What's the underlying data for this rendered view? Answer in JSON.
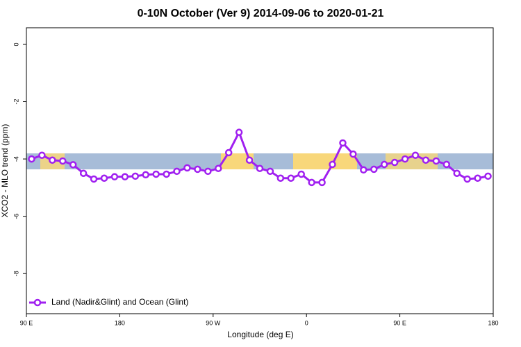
{
  "chart_data": {
    "type": "line",
    "title": "0-10N October (Ver 9)   2014-09-06 to 2020-01-21",
    "x_label": "Longitude (deg E)",
    "y_label": "XCO2 - MLO trend (ppm)",
    "x": [
      95,
      105,
      115,
      125,
      135,
      145,
      155,
      165,
      175,
      185,
      195,
      205,
      215,
      225,
      235,
      245,
      255,
      265,
      275,
      285,
      295,
      305,
      315,
      325,
      335,
      345,
      355,
      365,
      375,
      385,
      395,
      405,
      415,
      425,
      435,
      445,
      455,
      465,
      475,
      485,
      495,
      505,
      515,
      525,
      535
    ],
    "series": [
      {
        "name": "Land (Nadir&Glint) and Ocean (Glint)",
        "color": "#a020f0",
        "values": [
          -4.0,
          -3.87,
          -4.04,
          -4.07,
          -4.2,
          -4.5,
          -4.7,
          -4.67,
          -4.62,
          -4.62,
          -4.6,
          -4.55,
          -4.53,
          -4.53,
          -4.43,
          -4.31,
          -4.36,
          -4.43,
          -4.33,
          -3.78,
          -3.07,
          -4.04,
          -4.33,
          -4.43,
          -4.67,
          -4.67,
          -4.53,
          -4.82,
          -4.82,
          -4.19,
          -3.44,
          -3.83,
          -4.38,
          -4.36,
          -4.19,
          -4.12,
          -4.0,
          -3.87,
          -4.04,
          -4.07,
          -4.19,
          -4.5,
          -4.7,
          -4.67,
          -4.6
        ]
      }
    ],
    "xlim": [
      90,
      540
    ],
    "xticks": [
      {
        "value": 90,
        "label": "90 E"
      },
      180,
      {
        "value": 270,
        "label": "90 W"
      },
      {
        "value": 360,
        "label": "0"
      },
      {
        "value": 450,
        "label": "90 E"
      },
      {
        "value": 540,
        "label": "180"
      }
    ],
    "ylim": [
      -9.4,
      0.58
    ],
    "yticks": [
      0,
      -2,
      -4,
      -6,
      -8
    ],
    "legend": "bottom-left"
  }
}
